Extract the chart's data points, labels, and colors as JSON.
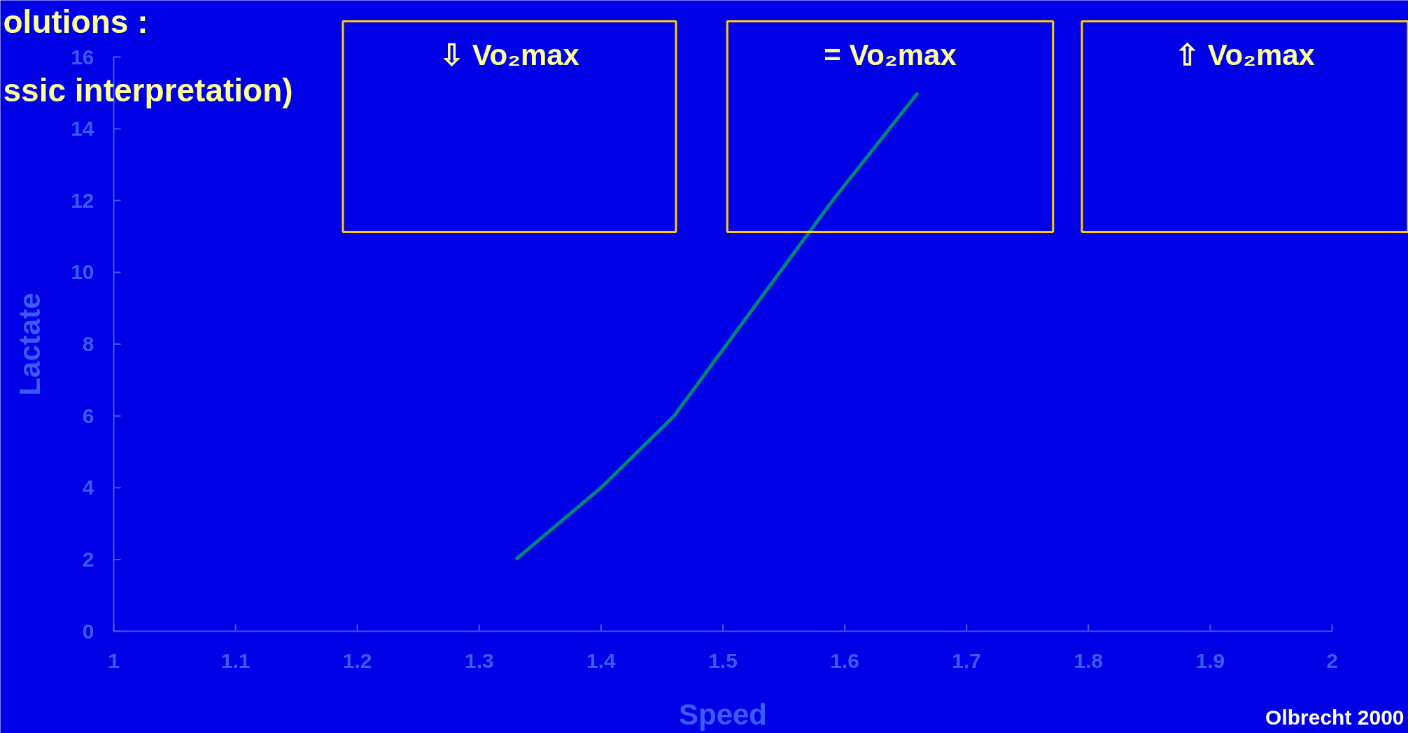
{
  "chart_data": {
    "type": "line",
    "title": "olutions :",
    "subtitle": "ssic interpretation)",
    "xlabel": "Speed",
    "ylabel": "Lactate",
    "x": [
      1.33,
      1.4,
      1.46,
      1.59,
      1.66
    ],
    "series": [
      {
        "color": "#00857a",
        "values": [
          2,
          4,
          6,
          12,
          15
        ]
      }
    ],
    "xlim": [
      1,
      2
    ],
    "xticks": [
      1,
      1.1,
      1.2,
      1.3,
      1.4,
      1.5,
      1.6,
      1.7,
      1.8,
      1.9,
      2
    ],
    "ylim": [
      0,
      16
    ],
    "yticks": [
      0,
      2,
      4,
      6,
      8,
      10,
      12,
      14,
      16
    ],
    "grid": false,
    "marker": "none",
    "line_style": "solid",
    "annotations": [
      "⇩ Vo₂max",
      "= Vo₂max",
      "⇧ Vo₂max",
      "Olbrecht 2000"
    ]
  }
}
